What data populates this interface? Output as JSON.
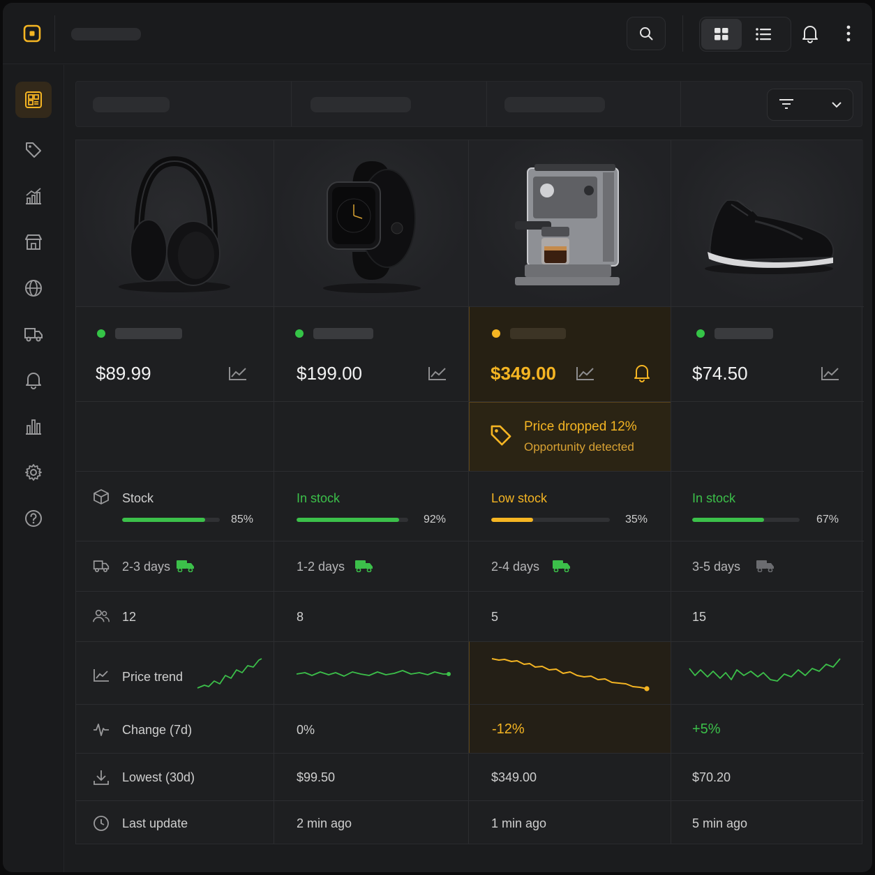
{
  "colors": {
    "accent": "#f5b523",
    "success": "#3cc04a",
    "muted": "#8e8e90"
  },
  "topbar": {
    "icons": [
      "app-logo-icon",
      "search-icon",
      "grid-view-icon",
      "list-view-icon",
      "bell-icon",
      "more-vertical-icon"
    ]
  },
  "sidebar": {
    "items": [
      {
        "icon": "dashboard-icon",
        "active": true
      },
      {
        "icon": "tag-icon"
      },
      {
        "icon": "analytics-icon"
      },
      {
        "icon": "store-icon"
      },
      {
        "icon": "globe-icon"
      },
      {
        "icon": "truck-icon"
      },
      {
        "icon": "bell-icon"
      },
      {
        "icon": "bar-chart-icon"
      },
      {
        "icon": "settings-icon"
      },
      {
        "icon": "help-icon"
      }
    ]
  },
  "rows": {
    "stock": "Stock",
    "delivery_icon": "truck-icon",
    "sellers_icon": "users-icon",
    "trend": "Price trend",
    "change": "Change (7d)",
    "lowest": "Lowest (30d)",
    "last_update": "Last update"
  },
  "products": [
    {
      "image": "headphones",
      "status": "green",
      "price": "$89.99",
      "stock_label": "",
      "stock_pct": 85,
      "stock_pct_label": "85%",
      "delivery": "2-3 days",
      "delivery_fast": true,
      "sellers": "12",
      "change": "",
      "lowest": "",
      "updated": ""
    },
    {
      "image": "smartwatch",
      "status": "green",
      "price": "$199.00",
      "stock_label": "In stock",
      "stock_pct": 92,
      "stock_pct_label": "92%",
      "delivery": "1-2 days",
      "delivery_fast": true,
      "sellers": "8",
      "change": "0%",
      "lowest": "$99.50",
      "updated": "2 min ago"
    },
    {
      "image": "espresso-machine",
      "status": "orange",
      "price": "$349.00",
      "stock_label": "Low stock",
      "stock_pct": 35,
      "stock_pct_label": "35%",
      "delivery": "2-4 days",
      "delivery_fast": true,
      "sellers": "5",
      "change": "-12%",
      "lowest": "$349.00",
      "updated": "1 min ago",
      "alert": {
        "title": "Price dropped 12%",
        "subtitle": "Opportunity detected"
      }
    },
    {
      "image": "sneaker",
      "status": "green",
      "price": "$74.50",
      "stock_label": "In stock",
      "stock_pct": 67,
      "stock_pct_label": "67%",
      "delivery": "3-5 days",
      "delivery_fast": false,
      "sellers": "15",
      "change": "+5%",
      "lowest": "$70.20",
      "updated": "5 min ago"
    }
  ]
}
